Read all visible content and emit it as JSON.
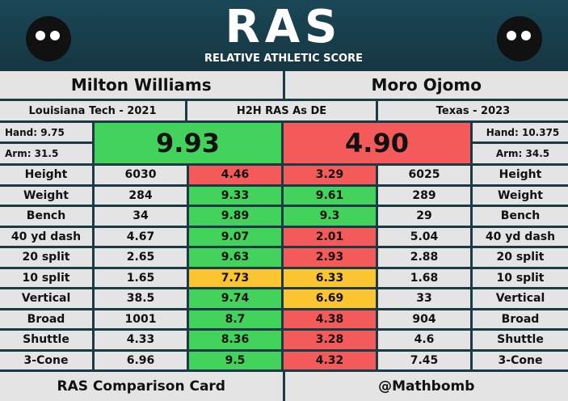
{
  "header": {
    "logo": "RAS",
    "subtitle": "RELATIVE ATHLETIC SCORE"
  },
  "players": [
    {
      "name": "Milton Williams",
      "school": "Louisiana Tech - 2021",
      "hand": "Hand: 9.75",
      "arm": "Arm: 31.5",
      "ras": "9.93",
      "ras_color": "#43d35c"
    },
    {
      "name": "Moro Ojomo",
      "school": "Texas - 2023",
      "hand": "Hand: 10.375",
      "arm": "Arm: 34.5",
      "ras": "4.90",
      "ras_color": "#f55a5a"
    }
  ],
  "comparison_label": "H2H RAS As DE",
  "table": {
    "rows": [
      {
        "metric": "Height",
        "left_value": "6030",
        "left_score": "4.46",
        "left_color": "#f55a5a",
        "right_score": "3.29",
        "right_color": "#f55a5a",
        "right_value": "6025"
      },
      {
        "metric": "Weight",
        "left_value": "284",
        "left_score": "9.33",
        "left_color": "#43d35c",
        "right_score": "9.61",
        "right_color": "#43d35c",
        "right_value": "289"
      },
      {
        "metric": "Bench",
        "left_value": "34",
        "left_score": "9.89",
        "left_color": "#43d35c",
        "right_score": "9.3",
        "right_color": "#43d35c",
        "right_value": "29"
      },
      {
        "metric": "40 yd dash",
        "left_value": "4.67",
        "left_score": "9.07",
        "left_color": "#43d35c",
        "right_score": "2.01",
        "right_color": "#f55a5a",
        "right_value": "5.04"
      },
      {
        "metric": "20 split",
        "left_value": "2.65",
        "left_score": "9.63",
        "left_color": "#43d35c",
        "right_score": "2.93",
        "right_color": "#f55a5a",
        "right_value": "2.88"
      },
      {
        "metric": "10 split",
        "left_value": "1.65",
        "left_score": "7.73",
        "left_color": "#fbc531",
        "right_score": "6.33",
        "right_color": "#fbc531",
        "right_value": "1.68"
      },
      {
        "metric": "Vertical",
        "left_value": "38.5",
        "left_score": "9.74",
        "left_color": "#43d35c",
        "right_score": "6.69",
        "right_color": "#fbc531",
        "right_value": "33"
      },
      {
        "metric": "Broad",
        "left_value": "1001",
        "left_score": "8.7",
        "left_color": "#43d35c",
        "right_score": "4.38",
        "right_color": "#f55a5a",
        "right_value": "904"
      },
      {
        "metric": "Shuttle",
        "left_value": "4.33",
        "left_score": "8.36",
        "left_color": "#43d35c",
        "right_score": "3.28",
        "right_color": "#f55a5a",
        "right_value": "4.6"
      },
      {
        "metric": "3-Cone",
        "left_value": "6.96",
        "left_score": "9.5",
        "left_color": "#43d35c",
        "right_score": "4.32",
        "right_color": "#f55a5a",
        "right_value": "7.45"
      }
    ]
  },
  "footer": {
    "left": "RAS Comparison Card",
    "right": "@Mathbomb"
  }
}
